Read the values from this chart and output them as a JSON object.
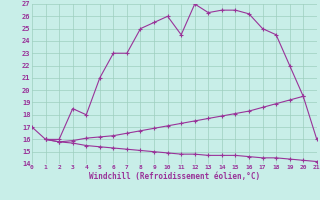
{
  "xlabel": "Windchill (Refroidissement éolien,°C)",
  "x": [
    0,
    1,
    2,
    3,
    4,
    5,
    6,
    7,
    8,
    9,
    10,
    11,
    12,
    13,
    14,
    15,
    16,
    17,
    18,
    19,
    20,
    21
  ],
  "line_top_x": [
    0,
    1,
    2,
    3,
    4,
    5,
    6,
    7,
    8,
    9,
    10,
    11,
    12,
    13,
    14,
    15,
    16,
    17,
    18,
    19,
    20
  ],
  "line_top_y": [
    17.0,
    16.0,
    16.0,
    18.5,
    18.0,
    21.0,
    23.0,
    23.0,
    25.0,
    25.5,
    26.0,
    24.5,
    27.0,
    26.3,
    26.5,
    26.5,
    26.2,
    25.0,
    24.5,
    22.0,
    19.5
  ],
  "line_mid_x": [
    1,
    2,
    3,
    4,
    5,
    6,
    7,
    8,
    9,
    10,
    11,
    12,
    13,
    14,
    15,
    16,
    17,
    18,
    19,
    20,
    21
  ],
  "line_mid_y": [
    16.0,
    15.8,
    15.9,
    16.1,
    16.2,
    16.3,
    16.5,
    16.7,
    16.9,
    17.1,
    17.3,
    17.5,
    17.7,
    17.9,
    18.1,
    18.3,
    18.6,
    18.9,
    19.2,
    19.5,
    16.0
  ],
  "line_bot_x": [
    1,
    2,
    3,
    4,
    5,
    6,
    7,
    8,
    9,
    10,
    11,
    12,
    13,
    14,
    15,
    16,
    17,
    18,
    19,
    20,
    21
  ],
  "line_bot_y": [
    16.0,
    15.8,
    15.7,
    15.5,
    15.4,
    15.3,
    15.2,
    15.1,
    15.0,
    14.9,
    14.8,
    14.8,
    14.7,
    14.7,
    14.7,
    14.6,
    14.5,
    14.5,
    14.4,
    14.3,
    14.2
  ],
  "xlim": [
    0,
    21
  ],
  "ylim": [
    14,
    27
  ],
  "yticks": [
    14,
    15,
    16,
    17,
    18,
    19,
    20,
    21,
    22,
    23,
    24,
    25,
    26,
    27
  ],
  "xticks": [
    0,
    1,
    2,
    3,
    4,
    5,
    6,
    7,
    8,
    9,
    10,
    11,
    12,
    13,
    14,
    15,
    16,
    17,
    18,
    19,
    20,
    21
  ],
  "line_color": "#993399",
  "bg_color": "#c8eee8",
  "grid_color": "#9ecfbf"
}
